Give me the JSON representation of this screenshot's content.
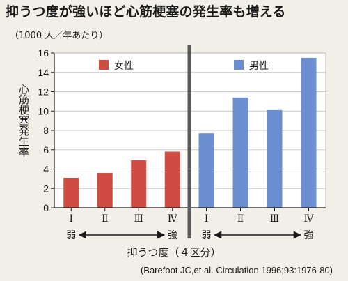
{
  "title": "抑うつ度が強いほど心筋梗塞の発生率も増える",
  "unit_note": "（1000 人／年あたり）",
  "source": "(Barefoot JC,et al. Circulation 1996;93:1976-80)",
  "colors": {
    "female": "#d04b42",
    "male": "#6b8fd0",
    "divider": "#5a5a5a"
  },
  "chart_data": {
    "type": "bar",
    "ylabel": "心筋梗塞発生率",
    "xlabel": "抑うつ度（４区分）",
    "ylim": [
      0,
      16
    ],
    "yticks": [
      0,
      2,
      4,
      6,
      8,
      10,
      12,
      14,
      16
    ],
    "panels": [
      {
        "name": "女性",
        "color": "#d04b42",
        "categories": [
          "Ⅰ",
          "Ⅱ",
          "Ⅲ",
          "Ⅳ"
        ],
        "values": [
          3.1,
          3.6,
          4.9,
          5.8
        ],
        "weak_label": "弱",
        "strong_label": "強"
      },
      {
        "name": "男性",
        "color": "#6b8fd0",
        "categories": [
          "Ⅰ",
          "Ⅱ",
          "Ⅲ",
          "Ⅳ"
        ],
        "values": [
          7.7,
          11.4,
          10.1,
          15.5
        ],
        "weak_label": "弱",
        "strong_label": "強"
      }
    ]
  }
}
